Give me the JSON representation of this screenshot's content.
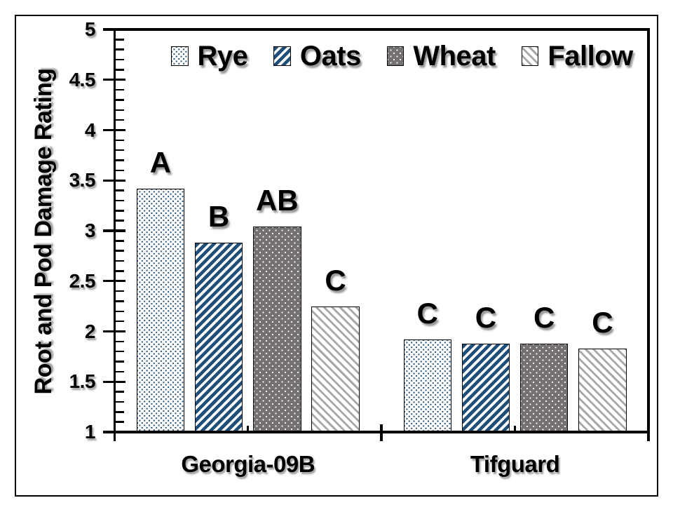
{
  "figure": {
    "background": "#FFFFFF",
    "border_color": "#000000"
  },
  "chart_data": {
    "type": "bar",
    "title": "",
    "xlabel": "",
    "ylabel": "Root and Pod Damage Rating",
    "ylim": [
      1,
      5
    ],
    "yticks_major": [
      "5",
      "4.5",
      "4",
      "3.5",
      "3",
      "2.5",
      "2",
      "1.5",
      "1"
    ],
    "ytick_major_step": 0.5,
    "ytick_minor_step": 0.1,
    "grid": false,
    "legend_position": "top",
    "categories": [
      "Georgia-09B",
      "Tifguard"
    ],
    "series": [
      {
        "name": "Rye",
        "pattern": "small-dots",
        "fg": "#1F4E79",
        "bg": "#FFFFFF",
        "values": [
          3.42,
          1.92
        ],
        "labels": [
          "A",
          "C"
        ]
      },
      {
        "name": "Oats",
        "pattern": "diagonal-stripes-up",
        "fg": "#1F4E79",
        "bg": "#FFFFFF",
        "values": [
          2.88,
          1.88
        ],
        "labels": [
          "B",
          "C"
        ]
      },
      {
        "name": "Wheat",
        "pattern": "white-dots-on-gray",
        "fg": "#FFFFFF",
        "bg": "#767171",
        "values": [
          3.04,
          1.88
        ],
        "labels": [
          "AB",
          "C"
        ]
      },
      {
        "name": "Fallow",
        "pattern": "diagonal-stripes-down",
        "fg": "#A8A8A8",
        "bg": "#FFFFFF",
        "values": [
          2.25,
          1.83
        ],
        "labels": [
          "C",
          "C"
        ]
      }
    ],
    "colors": {
      "navy": "#1F4E79",
      "dark_gray": "#767171",
      "light_gray": "#A8A8A8",
      "text": "#000000"
    }
  }
}
